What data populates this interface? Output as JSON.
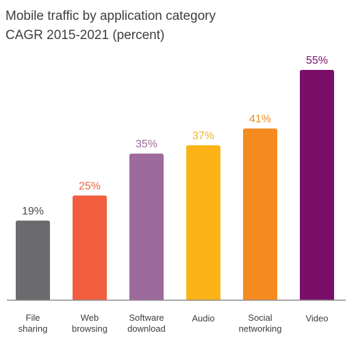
{
  "chart_data": {
    "type": "bar",
    "title": "Mobile traffic by application category",
    "subtitle": "CAGR 2015-2021 (percent)",
    "categories": [
      [
        "File",
        "sharing"
      ],
      [
        "Web",
        "browsing"
      ],
      [
        "Software",
        "download"
      ],
      [
        "Audio"
      ],
      [
        "Social",
        "networking"
      ],
      [
        "Video"
      ]
    ],
    "values": [
      19,
      25,
      35,
      37,
      41,
      55
    ],
    "value_labels": [
      "19%",
      "25%",
      "35%",
      "37%",
      "41%",
      "55%"
    ],
    "colors": [
      "#6b6b6d",
      "#f15f3e",
      "#9d6a9c",
      "#fbb317",
      "#f58a1f",
      "#7a0e69"
    ],
    "label_colors": [
      "#4a4a4a",
      "#f15f3e",
      "#9d6a9c",
      "#fbb317",
      "#f58a1f",
      "#7a0e69"
    ],
    "ylim": [
      0,
      55
    ],
    "grid": false,
    "legend": "none"
  }
}
